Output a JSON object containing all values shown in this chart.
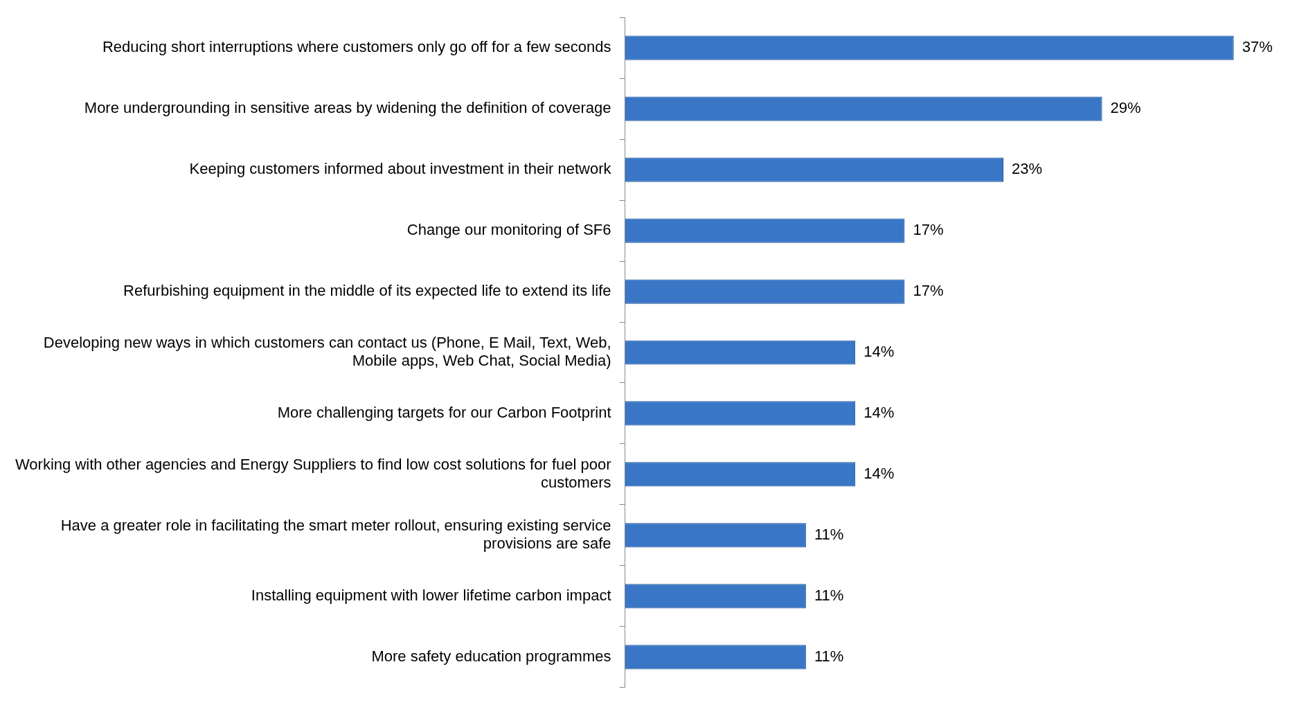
{
  "chart_data": {
    "type": "bar",
    "orientation": "horizontal",
    "categories": [
      "Reducing short interruptions where customers only go off for a few seconds",
      "More undergrounding in sensitive areas by widening the definition of coverage",
      "Keeping customers informed about investment in their network",
      "Change our monitoring of SF6",
      "Refurbishing equipment in the middle of its expected life to extend its life",
      "Developing new ways in which customers can contact us (Phone, E Mail, Text, Web, Mobile apps, Web Chat, Social Media)",
      "More challenging targets for our Carbon Footprint",
      "Working with other agencies and Energy Suppliers to find low cost solutions for fuel poor customers",
      "Have a greater role in facilitating the smart meter rollout, ensuring existing service provisions are safe",
      "Installing equipment with lower lifetime carbon impact",
      "More safety education programmes"
    ],
    "values": [
      37,
      29,
      23,
      17,
      17,
      14,
      14,
      14,
      11,
      11,
      11
    ],
    "value_labels": [
      "37%",
      "29%",
      "23%",
      "17%",
      "17%",
      "14%",
      "14%",
      "14%",
      "11%",
      "11%",
      "11%"
    ],
    "color": "#3a76c6",
    "tick_labels": "y"
  }
}
